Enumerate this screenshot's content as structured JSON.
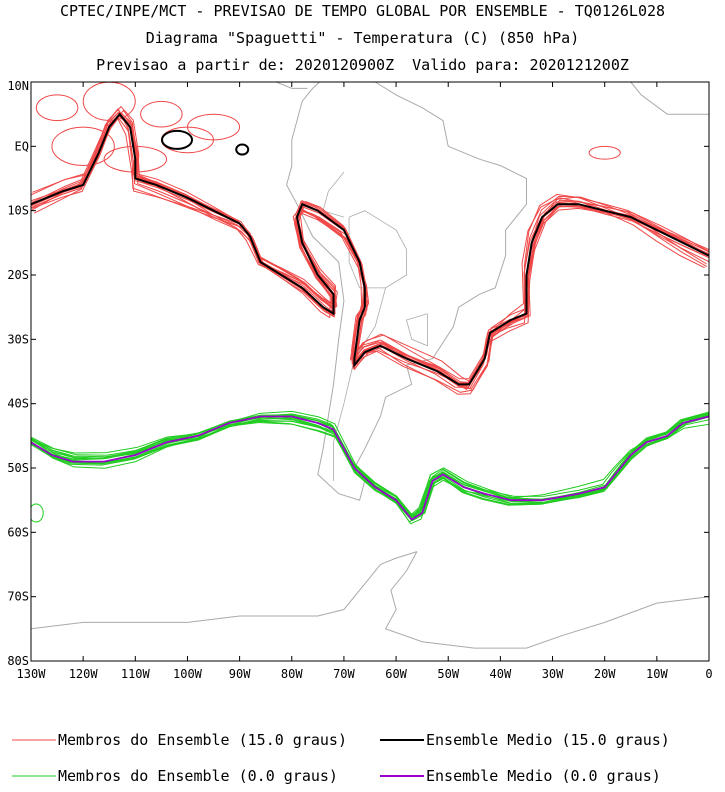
{
  "header": {
    "title_line1": "CPTEC/INPE/MCT - PREVISAO DE TEMPO GLOBAL POR ENSEMBLE - TQ0126L028",
    "title_line2": "Diagrama \"Spaguetti\" - Temperatura (C) (850 hPa)",
    "title_line3": "Previsao a partir de: 2020120900Z  Valido para: 2020121200Z"
  },
  "chart_data": {
    "type": "map-contour",
    "xlim": [
      -130,
      0
    ],
    "ylim": [
      -80,
      10
    ],
    "lat_ticks": [
      {
        "value": 10,
        "label": "10N"
      },
      {
        "value": 0,
        "label": "EQ"
      },
      {
        "value": -10,
        "label": "10S"
      },
      {
        "value": -20,
        "label": "20S"
      },
      {
        "value": -30,
        "label": "30S"
      },
      {
        "value": -40,
        "label": "40S"
      },
      {
        "value": -50,
        "label": "50S"
      },
      {
        "value": -60,
        "label": "60S"
      },
      {
        "value": -70,
        "label": "70S"
      },
      {
        "value": -80,
        "label": "80S"
      }
    ],
    "lon_ticks": [
      {
        "value": -130,
        "label": "130W"
      },
      {
        "value": -120,
        "label": "120W"
      },
      {
        "value": -110,
        "label": "110W"
      },
      {
        "value": -100,
        "label": "100W"
      },
      {
        "value": -90,
        "label": "90W"
      },
      {
        "value": -80,
        "label": "80W"
      },
      {
        "value": -70,
        "label": "70W"
      },
      {
        "value": -60,
        "label": "60W"
      },
      {
        "value": -50,
        "label": "50W"
      },
      {
        "value": -40,
        "label": "40W"
      },
      {
        "value": -30,
        "label": "30W"
      },
      {
        "value": -20,
        "label": "20W"
      },
      {
        "value": -10,
        "label": "10W"
      },
      {
        "value": 0,
        "label": "0"
      }
    ],
    "colors": {
      "members_15": "#f04848",
      "mean_15": "#000000",
      "members_0": "#22cc22",
      "mean_0": "#9900cc",
      "coastline": "#aaaaaa"
    },
    "mean_15": [
      [
        -130,
        -9
      ],
      [
        -124,
        -7
      ],
      [
        -120,
        -6
      ],
      [
        -117,
        -1
      ],
      [
        -115,
        3
      ],
      [
        -113,
        5
      ],
      [
        -111,
        3
      ],
      [
        -110,
        -2
      ],
      [
        -110,
        -5
      ],
      [
        -106,
        -6
      ],
      [
        -100,
        -8
      ],
      [
        -95,
        -10
      ],
      [
        -90,
        -12
      ],
      [
        -88,
        -14
      ],
      [
        -86,
        -18
      ],
      [
        -82,
        -20
      ],
      [
        -78,
        -22
      ],
      [
        -74,
        -25
      ],
      [
        -72,
        -26
      ],
      [
        -72,
        -23
      ],
      [
        -75,
        -20
      ],
      [
        -78,
        -15
      ],
      [
        -79,
        -11
      ],
      [
        -78,
        -9
      ],
      [
        -75,
        -10
      ],
      [
        -70,
        -13
      ],
      [
        -67,
        -18
      ],
      [
        -66,
        -22
      ],
      [
        -66,
        -25
      ],
      [
        -67,
        -27
      ],
      [
        -68,
        -33
      ],
      [
        -68,
        -34
      ],
      [
        -66,
        -32
      ],
      [
        -63,
        -31
      ],
      [
        -58,
        -33
      ],
      [
        -52,
        -35
      ],
      [
        -48,
        -37
      ],
      [
        -46,
        -37
      ],
      [
        -43,
        -33
      ],
      [
        -42,
        -29
      ],
      [
        -38,
        -27
      ],
      [
        -35,
        -26
      ],
      [
        -35,
        -20
      ],
      [
        -34,
        -15
      ],
      [
        -32,
        -11
      ],
      [
        -29,
        -9
      ],
      [
        -25,
        -9
      ],
      [
        -20,
        -10
      ],
      [
        -15,
        -11
      ],
      [
        -10,
        -13
      ],
      [
        -5,
        -15
      ],
      [
        0,
        -17
      ]
    ],
    "mean_0": [
      [
        -130,
        -46
      ],
      [
        -126,
        -48
      ],
      [
        -122,
        -49
      ],
      [
        -116,
        -49
      ],
      [
        -110,
        -48
      ],
      [
        -104,
        -46
      ],
      [
        -98,
        -45
      ],
      [
        -92,
        -43
      ],
      [
        -86,
        -42
      ],
      [
        -80,
        -42
      ],
      [
        -75,
        -43
      ],
      [
        -72,
        -44
      ],
      [
        -68,
        -50
      ],
      [
        -64,
        -53
      ],
      [
        -60,
        -55
      ],
      [
        -57,
        -58
      ],
      [
        -55,
        -57
      ],
      [
        -53,
        -52
      ],
      [
        -51,
        -51
      ],
      [
        -47,
        -53
      ],
      [
        -43,
        -54
      ],
      [
        -38,
        -55
      ],
      [
        -32,
        -55
      ],
      [
        -25,
        -54
      ],
      [
        -20,
        -53
      ],
      [
        -18,
        -51
      ],
      [
        -15,
        -48
      ],
      [
        -12,
        -46
      ],
      [
        -8,
        -45
      ],
      [
        -5,
        -43
      ],
      [
        0,
        -42
      ]
    ],
    "legend": [
      {
        "label": "Membros do Ensemble (15.0 graus)",
        "color": "#f04848",
        "kind": "members"
      },
      {
        "label": "Ensemble Medio (15.0 graus)",
        "color": "#000000",
        "kind": "mean"
      },
      {
        "label": "Membros do Ensemble (0.0 graus)",
        "color": "#22cc22",
        "kind": "members"
      },
      {
        "label": "Ensemble Medio (0.0 graus)",
        "color": "#9900cc",
        "kind": "mean"
      }
    ]
  }
}
